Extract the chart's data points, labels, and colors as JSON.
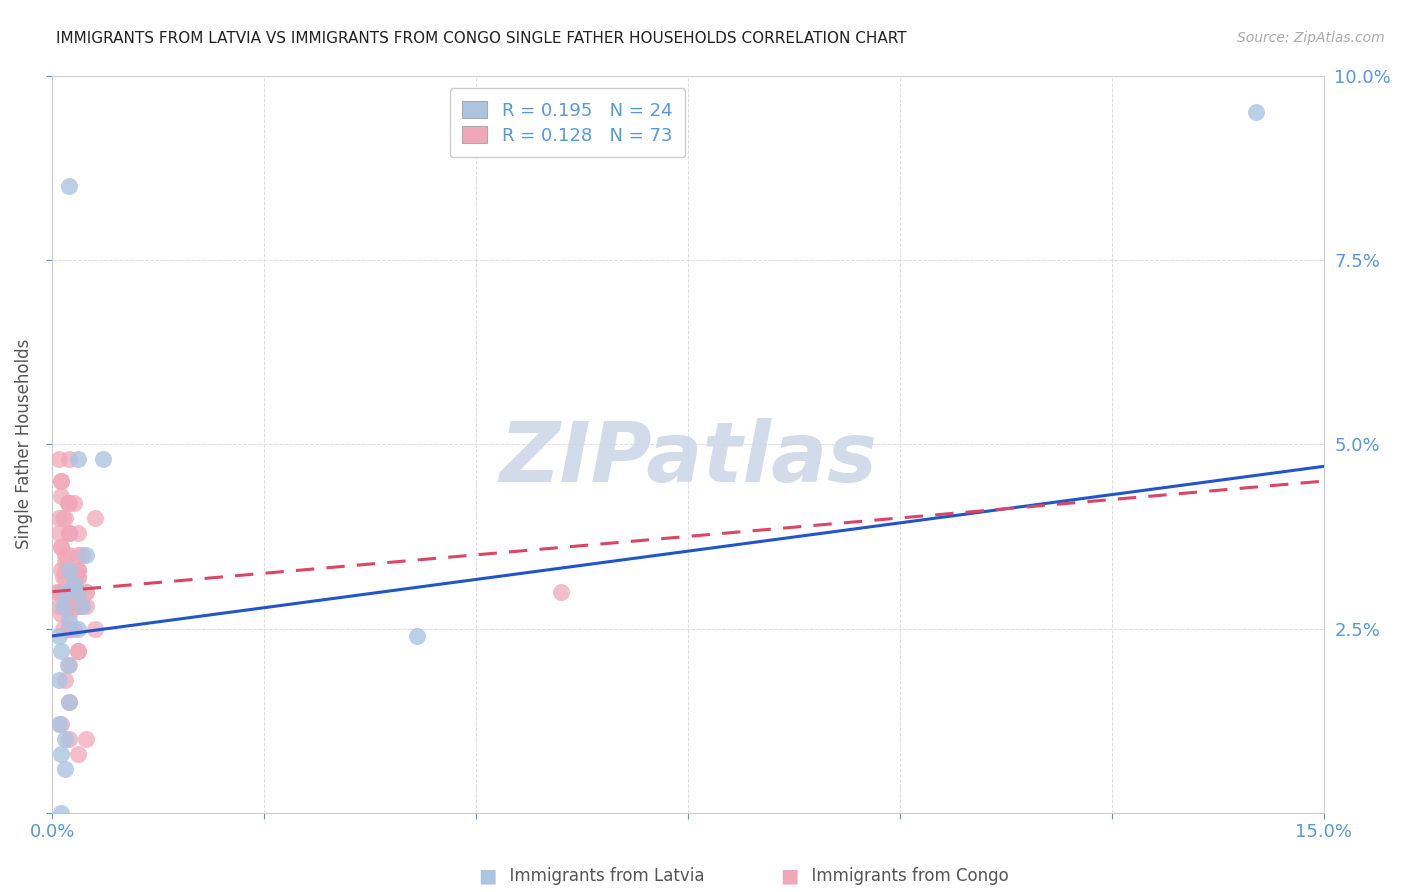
{
  "title": "IMMIGRANTS FROM LATVIA VS IMMIGRANTS FROM CONGO SINGLE FATHER HOUSEHOLDS CORRELATION CHART",
  "source": "Source: ZipAtlas.com",
  "ylabel": "Single Father Households",
  "xlim": [
    0.0,
    0.15
  ],
  "ylim": [
    0.0,
    0.1
  ],
  "xticks": [
    0.0,
    0.025,
    0.05,
    0.075,
    0.1,
    0.125,
    0.15
  ],
  "yticks": [
    0.0,
    0.025,
    0.05,
    0.075,
    0.1
  ],
  "latvia_R": 0.195,
  "latvia_N": 24,
  "congo_R": 0.128,
  "congo_N": 73,
  "latvia_color": "#aac4e2",
  "congo_color": "#f0a8b8",
  "latvia_line_color": "#2255cc",
  "congo_line_color": "#dd4466",
  "tick_color": "#5599dd",
  "label_color": "#555555",
  "grid_color": "#dddddd",
  "watermark_color": "#ccd8e8",
  "latvia_line_y0": 0.024,
  "latvia_line_y1": 0.047,
  "congo_line_y0": 0.03,
  "congo_line_y1": 0.045,
  "latvia_scatter_x": [
    0.0008,
    0.0015,
    0.001,
    0.0012,
    0.002,
    0.0018,
    0.0025,
    0.003,
    0.0035,
    0.004,
    0.003,
    0.002,
    0.0015,
    0.001,
    0.0008,
    0.002,
    0.003,
    0.006,
    0.0015,
    0.001,
    0.0008,
    0.002,
    0.043,
    0.142
  ],
  "latvia_scatter_y": [
    0.024,
    0.03,
    0.022,
    0.028,
    0.026,
    0.02,
    0.031,
    0.03,
    0.028,
    0.035,
    0.025,
    0.015,
    0.01,
    0.008,
    0.018,
    0.033,
    0.048,
    0.048,
    0.006,
    0.0,
    0.012,
    0.085,
    0.024,
    0.095
  ],
  "congo_scatter_x": [
    0.0005,
    0.001,
    0.0008,
    0.0015,
    0.002,
    0.0018,
    0.001,
    0.0025,
    0.003,
    0.002,
    0.0015,
    0.001,
    0.0008,
    0.002,
    0.0025,
    0.003,
    0.0035,
    0.004,
    0.003,
    0.0025,
    0.002,
    0.0015,
    0.001,
    0.0012,
    0.0018,
    0.002,
    0.003,
    0.0025,
    0.002,
    0.0015,
    0.001,
    0.0008,
    0.0012,
    0.002,
    0.003,
    0.0035,
    0.003,
    0.0025,
    0.002,
    0.0015,
    0.001,
    0.0008,
    0.002,
    0.003,
    0.004,
    0.003,
    0.002,
    0.001,
    0.0015,
    0.002,
    0.0008,
    0.001,
    0.0012,
    0.002,
    0.003,
    0.0018,
    0.0025,
    0.003,
    0.002,
    0.0015,
    0.001,
    0.002,
    0.003,
    0.004,
    0.005,
    0.003,
    0.002,
    0.001,
    0.06,
    0.004,
    0.005,
    0.003,
    0.002
  ],
  "congo_scatter_y": [
    0.03,
    0.045,
    0.038,
    0.04,
    0.048,
    0.042,
    0.036,
    0.028,
    0.032,
    0.038,
    0.033,
    0.036,
    0.04,
    0.035,
    0.042,
    0.033,
    0.028,
    0.03,
    0.035,
    0.03,
    0.028,
    0.032,
    0.03,
    0.025,
    0.042,
    0.038,
    0.033,
    0.025,
    0.03,
    0.034,
    0.03,
    0.028,
    0.032,
    0.038,
    0.022,
    0.035,
    0.028,
    0.03,
    0.03,
    0.028,
    0.027,
    0.03,
    0.025,
    0.033,
    0.03,
    0.028,
    0.025,
    0.033,
    0.035,
    0.028,
    0.048,
    0.045,
    0.04,
    0.042,
    0.038,
    0.025,
    0.032,
    0.03,
    0.027,
    0.018,
    0.012,
    0.01,
    0.008,
    0.01,
    0.04,
    0.032,
    0.02,
    0.043,
    0.03,
    0.028,
    0.025,
    0.022,
    0.015
  ]
}
